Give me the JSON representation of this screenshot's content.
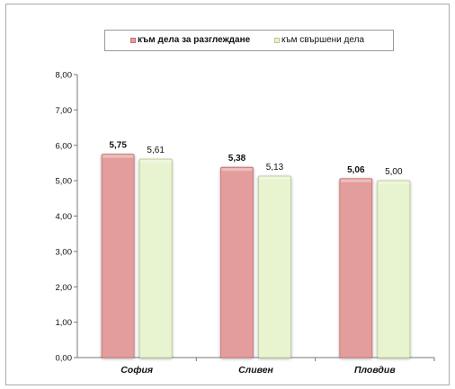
{
  "legend": {
    "series_1": "към дела за разглеждане",
    "series_2": "към свършени дела"
  },
  "colors": {
    "series_1_fill": "#e39d9d",
    "series_1_stroke": "#c96f6f",
    "series_2_fill": "#e8f3cf",
    "series_2_stroke": "#b8cc8e",
    "axis": "#777777"
  },
  "chart_data": {
    "type": "bar",
    "categories": [
      "София",
      "Сливен",
      "Пловдив"
    ],
    "series": [
      {
        "name": "към дела за разглеждане",
        "values": [
          5.75,
          5.38,
          5.06
        ],
        "labels": [
          "5,75",
          "5,38",
          "5,06"
        ]
      },
      {
        "name": "към свършени дела",
        "values": [
          5.61,
          5.13,
          5.0
        ],
        "labels": [
          "5,61",
          "5,13",
          "5,00"
        ]
      }
    ],
    "yticks": [
      "0,00",
      "1,00",
      "2,00",
      "3,00",
      "4,00",
      "5,00",
      "6,00",
      "7,00",
      "8,00"
    ],
    "ylim": [
      0,
      8
    ],
    "grid": false,
    "legend_position": "top"
  }
}
